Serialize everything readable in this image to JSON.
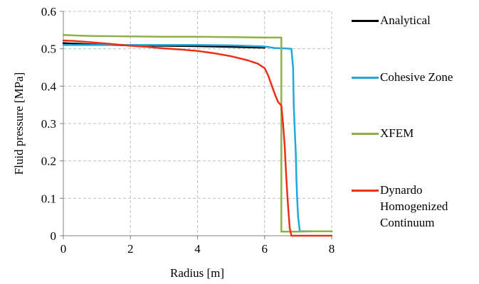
{
  "chart_data": {
    "type": "line",
    "title": "",
    "xlabel": "Radius [m]",
    "ylabel": "Fluid pressure [MPa]",
    "xlim": [
      0,
      8
    ],
    "ylim": [
      0,
      0.6
    ],
    "xticks": [
      0,
      2,
      4,
      6,
      8
    ],
    "yticks": [
      0,
      0.1,
      0.2,
      0.3,
      0.4,
      0.5,
      0.6
    ],
    "xtick_labels": [
      "0",
      "2",
      "4",
      "6",
      "8"
    ],
    "ytick_labels": [
      "0",
      "0.1",
      "0.2",
      "0.3",
      "0.4",
      "0.5",
      "0.6"
    ],
    "grid": true,
    "legend_position": "right",
    "series": [
      {
        "name": "Analytical",
        "color": "#000000",
        "x": [
          0,
          0.5,
          1,
          2,
          3,
          4,
          5,
          5.5,
          6.0
        ],
        "y": [
          0.515,
          0.513,
          0.511,
          0.509,
          0.508,
          0.507,
          0.505,
          0.504,
          0.503
        ]
      },
      {
        "name": "Cohesive Zone",
        "color": "#1fa8db",
        "x": [
          0,
          0.5,
          1,
          2,
          3,
          4,
          5,
          6.0,
          6.3,
          6.6,
          6.8,
          6.85,
          6.87,
          6.9,
          6.93,
          6.95,
          6.97,
          7.0,
          7.05,
          7.1,
          8
        ],
        "y": [
          0.51,
          0.51,
          0.51,
          0.51,
          0.51,
          0.51,
          0.509,
          0.506,
          0.502,
          0.501,
          0.5,
          0.45,
          0.35,
          0.28,
          0.22,
          0.15,
          0.1,
          0.05,
          0.012,
          0.012,
          0.012
        ]
      },
      {
        "name": "XFEM",
        "color": "#8db04a",
        "x": [
          0,
          0.5,
          1,
          2,
          3,
          4,
          5,
          6,
          6.5,
          6.5,
          7.0,
          7.5,
          8
        ],
        "y": [
          0.537,
          0.535,
          0.534,
          0.533,
          0.532,
          0.532,
          0.531,
          0.53,
          0.53,
          0.011,
          0.011,
          0.012,
          0.012
        ]
      },
      {
        "name": "Dynardo\nHomogenized\nContinuum",
        "color": "#ee2f17",
        "x": [
          0,
          0.3,
          0.6,
          1,
          1.5,
          2,
          2.5,
          3,
          3.5,
          4,
          4.5,
          5,
          5.5,
          5.8,
          6.0,
          6.1,
          6.2,
          6.3,
          6.4,
          6.5,
          6.55,
          6.6,
          6.65,
          6.7,
          6.75,
          6.8,
          7.0,
          8
        ],
        "y": [
          0.522,
          0.521,
          0.519,
          0.516,
          0.512,
          0.508,
          0.505,
          0.501,
          0.498,
          0.494,
          0.488,
          0.48,
          0.469,
          0.46,
          0.448,
          0.43,
          0.405,
          0.38,
          0.358,
          0.348,
          0.3,
          0.24,
          0.15,
          0.08,
          0.02,
          0.0,
          0.0,
          0.0
        ]
      }
    ]
  }
}
